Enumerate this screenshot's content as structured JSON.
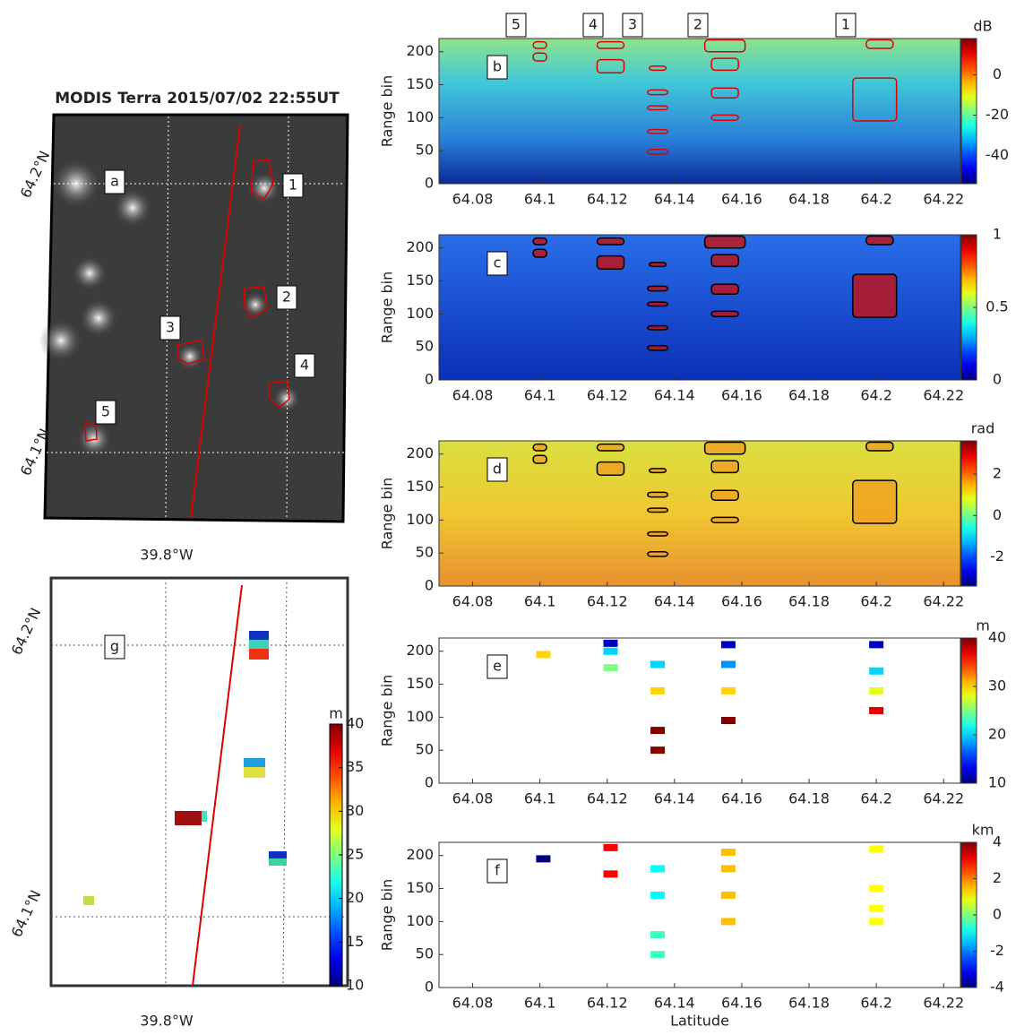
{
  "map_a": {
    "title": "MODIS Terra 2015/07/02 22:55UT",
    "panel": "a",
    "lat_labels": [
      "64.2°N",
      "64.1°N"
    ],
    "lon_label": "39.8°W",
    "labels": [
      "1",
      "2",
      "3",
      "4",
      "5"
    ]
  },
  "map_g": {
    "panel": "g",
    "lat_labels": [
      "64.2°N",
      "64.1°N"
    ],
    "lon_label": "39.8°W",
    "colorbar_label": "m",
    "clim": [
      10,
      40
    ],
    "cticks": [
      10,
      15,
      20,
      25,
      30,
      35,
      40
    ]
  },
  "profile_labels": [
    "5",
    "4",
    "3",
    "2",
    "1"
  ],
  "chart_data": [
    {
      "type": "heatmap",
      "panel": "b",
      "ylabel": "Range bin",
      "xlim": [
        64.07,
        64.225
      ],
      "xticks": [
        64.08,
        64.1,
        64.12,
        64.14,
        64.16,
        64.18,
        64.2,
        64.22
      ],
      "ylim": [
        0,
        220
      ],
      "yticks": [
        0,
        50,
        100,
        150,
        200
      ],
      "colorbar_label": "dB",
      "clim": [
        -54,
        18
      ],
      "cticks": [
        -40,
        -20,
        0
      ],
      "contour_color": "#e00000",
      "contours": [
        [
          64.098,
          64.102,
          205,
          215
        ],
        [
          64.098,
          64.102,
          186,
          198
        ],
        [
          64.117,
          64.125,
          205,
          215
        ],
        [
          64.117,
          64.125,
          168,
          188
        ],
        [
          64.1325,
          64.1375,
          172,
          178
        ],
        [
          64.132,
          64.138,
          135,
          142
        ],
        [
          64.132,
          64.138,
          112,
          118
        ],
        [
          64.132,
          64.138,
          76,
          82
        ],
        [
          64.132,
          64.138,
          45,
          52
        ],
        [
          64.149,
          64.161,
          200,
          218
        ],
        [
          64.151,
          64.159,
          172,
          190
        ],
        [
          64.151,
          64.159,
          130,
          145
        ],
        [
          64.151,
          64.159,
          96,
          104
        ],
        [
          64.197,
          64.205,
          205,
          218
        ],
        [
          64.193,
          64.206,
          95,
          160
        ]
      ]
    },
    {
      "type": "heatmap",
      "panel": "c",
      "ylabel": "Range bin",
      "xlim": [
        64.07,
        64.225
      ],
      "xticks": [
        64.08,
        64.1,
        64.12,
        64.14,
        64.16,
        64.18,
        64.2,
        64.22
      ],
      "ylim": [
        0,
        220
      ],
      "yticks": [
        0,
        50,
        100,
        150,
        200
      ],
      "clim": [
        0,
        1
      ],
      "cticks": [
        0,
        0.5,
        1
      ],
      "contour_color": "#000000"
    },
    {
      "type": "heatmap",
      "panel": "d",
      "ylabel": "Range bin",
      "xlim": [
        64.07,
        64.225
      ],
      "xticks": [
        64.08,
        64.1,
        64.12,
        64.14,
        64.16,
        64.18,
        64.2,
        64.22
      ],
      "ylim": [
        0,
        220
      ],
      "yticks": [
        0,
        50,
        100,
        150,
        200
      ],
      "colorbar_label": "rad",
      "clim": [
        -3.4,
        3.6
      ],
      "cticks": [
        -2,
        0,
        2
      ],
      "contour_color": "#000000"
    },
    {
      "type": "points",
      "panel": "e",
      "ylabel": "Range bin",
      "xlim": [
        64.07,
        64.225
      ],
      "xticks": [
        64.08,
        64.1,
        64.12,
        64.14,
        64.16,
        64.18,
        64.2,
        64.22
      ],
      "ylim": [
        0,
        220
      ],
      "yticks": [
        0,
        50,
        100,
        150,
        200
      ],
      "colorbar_label": "m",
      "clim": [
        10,
        40
      ],
      "cticks": [
        10,
        20,
        30,
        40
      ],
      "x": [
        64.101,
        64.121,
        64.121,
        64.121,
        64.135,
        64.135,
        64.135,
        64.135,
        64.156,
        64.156,
        64.156,
        64.156,
        64.2,
        64.2,
        64.2,
        64.2
      ],
      "y": [
        195,
        175,
        200,
        212,
        180,
        140,
        80,
        50,
        210,
        180,
        140,
        95,
        210,
        170,
        140,
        110
      ],
      "values": [
        30,
        25,
        20,
        12,
        20,
        30,
        40,
        40,
        12,
        18,
        30,
        40,
        12,
        20,
        28,
        37
      ]
    },
    {
      "type": "points",
      "panel": "f",
      "ylabel": "Range bin",
      "xlabel": "Latitude",
      "xlim": [
        64.07,
        64.225
      ],
      "xticks": [
        64.08,
        64.1,
        64.12,
        64.14,
        64.16,
        64.18,
        64.2,
        64.22
      ],
      "ylim": [
        0,
        220
      ],
      "yticks": [
        0,
        50,
        100,
        150,
        200
      ],
      "colorbar_label": "km",
      "clim": [
        -4,
        4
      ],
      "cticks": [
        -4,
        -2,
        0,
        2,
        4
      ],
      "x": [
        64.101,
        64.121,
        64.121,
        64.135,
        64.135,
        64.135,
        64.135,
        64.156,
        64.156,
        64.156,
        64.156,
        64.2,
        64.2,
        64.2,
        64.2
      ],
      "y": [
        195,
        172,
        212,
        180,
        140,
        80,
        50,
        205,
        180,
        140,
        100,
        210,
        150,
        120,
        100
      ],
      "values": [
        -4,
        3,
        3,
        -1,
        -1,
        -0.5,
        -0.5,
        1.5,
        1.5,
        1.5,
        1.5,
        1,
        1,
        1,
        1
      ]
    }
  ]
}
